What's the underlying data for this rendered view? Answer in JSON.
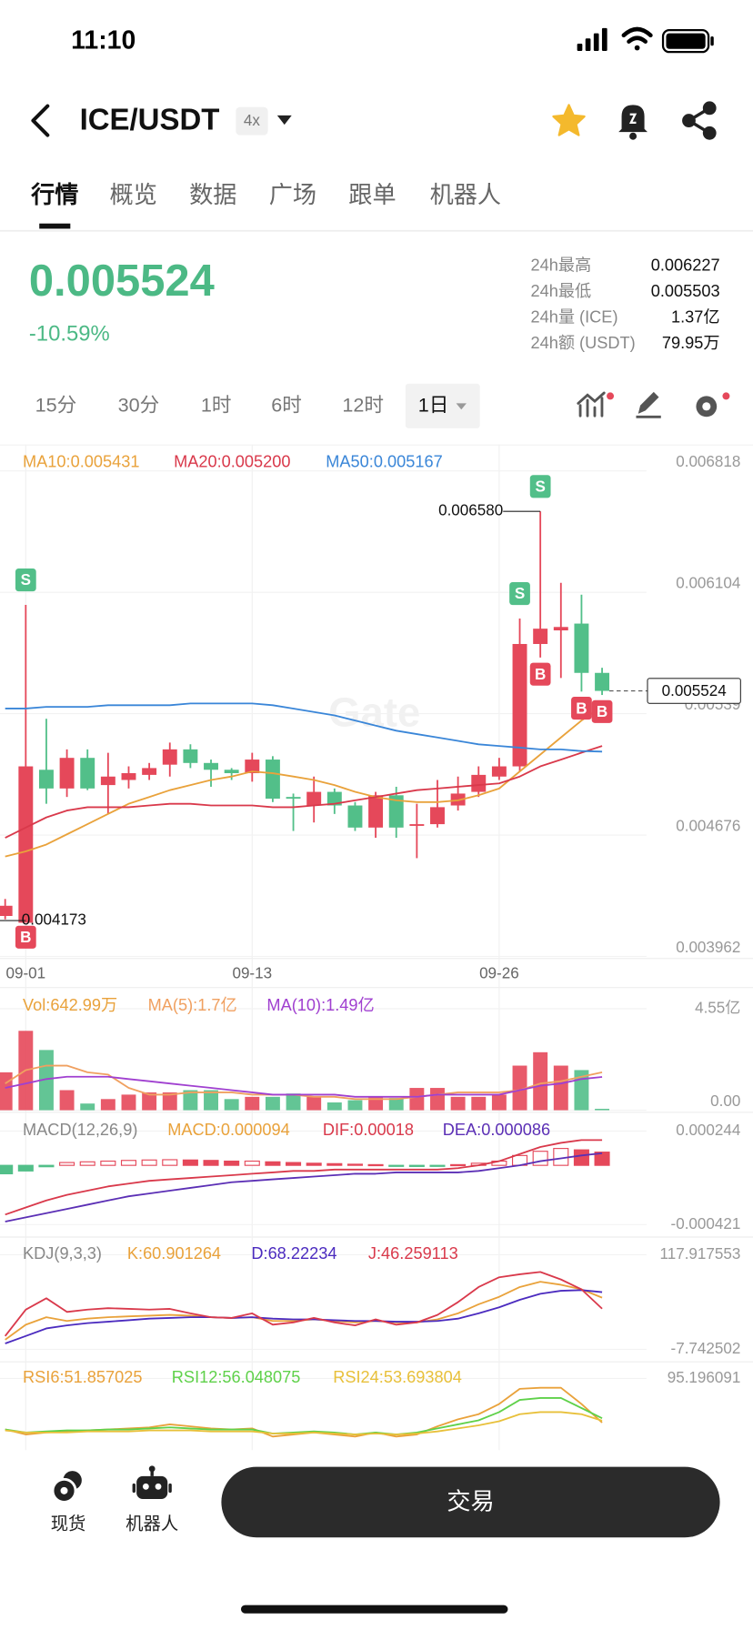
{
  "status_bar": {
    "time": "11:10"
  },
  "header": {
    "pair": "ICE/USDT",
    "leverage": "4x"
  },
  "tabs": [
    "行情",
    "概览",
    "数据",
    "广场",
    "跟单",
    "机器人"
  ],
  "ticker": {
    "price": "0.005524",
    "change": "-10.59%",
    "stats": [
      {
        "label": "24h最高",
        "value": "0.006227"
      },
      {
        "label": "24h最低",
        "value": "0.005503"
      },
      {
        "label": "24h量 (ICE)",
        "value": "1.37亿"
      },
      {
        "label": "24h额 (USDT)",
        "value": "79.95万"
      }
    ]
  },
  "intervals": [
    "15分",
    "30分",
    "1时",
    "6时",
    "12时",
    "1日"
  ],
  "active_interval": "1日",
  "chart_data": [
    {
      "type": "candlestick",
      "watermark": "Gate",
      "up_color": "#e5485a",
      "down_color": "#52bf89",
      "categories": [
        null,
        "09-01",
        null,
        null,
        null,
        null,
        null,
        null,
        null,
        null,
        null,
        null,
        "09-13",
        null,
        null,
        null,
        null,
        null,
        null,
        null,
        null,
        null,
        null,
        null,
        "09-26",
        null,
        null,
        null,
        null,
        null
      ],
      "open": [
        0.0042,
        0.00416,
        0.00506,
        0.00495,
        0.00513,
        0.00497,
        0.005,
        0.00503,
        0.00509,
        0.00518,
        0.0051,
        0.00506,
        0.00504,
        0.00512,
        0.0049,
        0.00485,
        0.00493,
        0.00485,
        0.00472,
        0.00491,
        0.00473,
        0.00474,
        0.00485,
        0.00493,
        0.00502,
        0.00508,
        0.0058,
        0.00588,
        0.00592,
        0.00563
      ],
      "high": [
        0.0043,
        0.00603,
        0.00536,
        0.00518,
        0.00518,
        0.00516,
        0.00508,
        0.0051,
        0.00522,
        0.00521,
        0.00512,
        0.00507,
        0.00516,
        0.00514,
        0.00492,
        0.00502,
        0.00495,
        0.00487,
        0.00493,
        0.00496,
        0.00486,
        0.005,
        0.00502,
        0.00508,
        0.00513,
        0.00595,
        0.00658,
        0.00616,
        0.00609,
        0.00566
      ],
      "low": [
        0.00418,
        0.004173,
        0.00486,
        0.0049,
        0.00494,
        0.0048,
        0.00495,
        0.005,
        0.00502,
        0.00507,
        0.00496,
        0.005,
        0.00499,
        0.00487,
        0.0047,
        0.00475,
        0.0048,
        0.0047,
        0.00466,
        0.00466,
        0.00454,
        0.00472,
        0.00482,
        0.0049,
        0.005,
        0.00505,
        0.00572,
        0.0056,
        0.00552,
        0.0055
      ],
      "close": [
        0.00426,
        0.00508,
        0.00495,
        0.00513,
        0.00495,
        0.00502,
        0.00504,
        0.00507,
        0.00518,
        0.0051,
        0.00506,
        0.00504,
        0.00512,
        0.00489,
        0.00489,
        0.00493,
        0.00485,
        0.00472,
        0.00491,
        0.00472,
        0.00474,
        0.00484,
        0.00492,
        0.00503,
        0.00508,
        0.0058,
        0.00589,
        0.0059,
        0.00563,
        0.005524
      ],
      "series": [
        {
          "name": "MA10:0.005431",
          "color": "#e9a23b",
          "values": [
            0.00455,
            0.00458,
            0.00462,
            0.00468,
            0.00474,
            0.0048,
            0.00486,
            0.0049,
            0.00494,
            0.00497,
            0.005,
            0.00502,
            0.00505,
            0.00504,
            0.00502,
            0.005,
            0.00497,
            0.00493,
            0.0049,
            0.00488,
            0.00487,
            0.00487,
            0.00488,
            0.00491,
            0.00495,
            0.00505,
            0.00515,
            0.00525,
            0.00535,
            0.005431
          ]
        },
        {
          "name": "MA20:0.005200",
          "color": "#d9394b",
          "values": [
            0.00466,
            0.00472,
            0.00478,
            0.00482,
            0.00484,
            0.00484,
            0.00484,
            0.00485,
            0.00486,
            0.00486,
            0.00485,
            0.00485,
            0.00485,
            0.00484,
            0.00484,
            0.00485,
            0.00486,
            0.00488,
            0.0049,
            0.00492,
            0.00494,
            0.00495,
            0.00496,
            0.00497,
            0.00498,
            0.00502,
            0.00508,
            0.00512,
            0.00516,
            0.0052
          ]
        },
        {
          "name": "MA50:0.005167",
          "color": "#3a86d8",
          "values": [
            0.00542,
            0.00542,
            0.00543,
            0.00543,
            0.00543,
            0.00544,
            0.00544,
            0.00544,
            0.00544,
            0.00545,
            0.00545,
            0.00545,
            0.00545,
            0.00544,
            0.00542,
            0.0054,
            0.00538,
            0.00535,
            0.00532,
            0.00529,
            0.00527,
            0.00525,
            0.00523,
            0.00521,
            0.0052,
            0.00519,
            0.00518,
            0.00518,
            0.00517,
            0.005167
          ]
        }
      ],
      "ylim": [
        0.00395,
        0.006971
      ],
      "yticks": [
        0.006818,
        0.006104,
        0.00539,
        0.004676,
        0.003962
      ],
      "markers": [
        {
          "candle": 1,
          "label": "S"
        },
        {
          "candle": 1,
          "label": "B"
        },
        {
          "candle": 25,
          "label": "S"
        },
        {
          "candle": 26,
          "label": "S"
        },
        {
          "candle": 26,
          "label": "B"
        },
        {
          "candle": 28,
          "label": "B"
        },
        {
          "candle": 29,
          "label": "B"
        }
      ],
      "high_label": {
        "candle": 26,
        "label": "0.006580"
      },
      "low_label": {
        "candle": 1,
        "label": "0.004173"
      },
      "last_price_label": "0.005524"
    },
    {
      "type": "bar",
      "title": "Vol:642.99万",
      "title_color": "#e9a23b",
      "values": [
        1.7,
        3.56,
        2.7,
        0.9,
        0.3,
        0.5,
        0.7,
        0.8,
        0.8,
        0.9,
        0.9,
        0.5,
        0.6,
        0.6,
        0.75,
        0.6,
        0.35,
        0.45,
        0.6,
        0.55,
        1.0,
        1.0,
        0.6,
        0.6,
        0.7,
        2.0,
        2.6,
        2.0,
        1.8,
        0.064299
      ],
      "series": [
        {
          "name": "MA(5):1.7亿",
          "color": "#f0a060",
          "values": [
            1.2,
            1.8,
            2.0,
            2.0,
            1.7,
            1.6,
            1.0,
            0.7,
            0.7,
            0.8,
            0.8,
            0.8,
            0.7,
            0.7,
            0.7,
            0.6,
            0.6,
            0.5,
            0.5,
            0.5,
            0.6,
            0.7,
            0.8,
            0.8,
            0.8,
            0.9,
            1.2,
            1.3,
            1.5,
            1.7
          ]
        },
        {
          "name": "MA(10):1.49亿",
          "color": "#a040d0",
          "values": [
            1.0,
            1.2,
            1.4,
            1.5,
            1.5,
            1.5,
            1.4,
            1.3,
            1.2,
            1.1,
            1.0,
            0.9,
            0.8,
            0.7,
            0.7,
            0.7,
            0.7,
            0.6,
            0.6,
            0.6,
            0.6,
            0.7,
            0.7,
            0.7,
            0.7,
            0.9,
            1.1,
            1.2,
            1.4,
            1.49
          ]
        }
      ],
      "ylim": [
        0,
        5.5
      ],
      "yticks": [
        {
          "value": 4.55,
          "label": "4.55亿"
        },
        {
          "value": 0,
          "label": "0.00"
        }
      ]
    },
    {
      "type": "macd",
      "title": "MACD(12,26,9)",
      "histogram": {
        "name": "MACD:0.000094",
        "color": "#e9a23b",
        "values": [
          -6e-05,
          -4e-05,
          -1e-05,
          2e-05,
          2.5e-05,
          3e-05,
          3.5e-05,
          3.8e-05,
          4e-05,
          3.8e-05,
          3.5e-05,
          3e-05,
          3e-05,
          2.5e-05,
          2e-05,
          1.5e-05,
          1.2e-05,
          8e-06,
          5e-06,
          -5e-06,
          -8e-06,
          -5e-06,
          5e-06,
          1.5e-05,
          3e-05,
          7e-05,
          0.0001,
          0.00012,
          0.00011,
          9.4e-05
        ]
      },
      "series": [
        {
          "name": "DIF:0.00018",
          "color": "#d9394b",
          "values": [
            -0.00035,
            -0.0003,
            -0.00025,
            -0.00021,
            -0.00018,
            -0.00015,
            -0.00013,
            -0.00011,
            -0.0001,
            -9e-05,
            -8e-05,
            -7e-05,
            -6e-05,
            -5e-05,
            -4e-05,
            -4e-05,
            -3e-05,
            -3e-05,
            -3e-05,
            -3e-05,
            -3e-05,
            -3e-05,
            -2e-05,
            0.0,
            3e-05,
            8e-05,
            0.00013,
            0.00016,
            0.00018,
            0.00018
          ]
        },
        {
          "name": "DEA:0.000086",
          "color": "#5b2fb5",
          "values": [
            -0.0004,
            -0.00037,
            -0.00034,
            -0.00031,
            -0.00028,
            -0.00025,
            -0.00022,
            -0.0002,
            -0.00018,
            -0.00016,
            -0.00014,
            -0.00012,
            -0.00011,
            -0.0001,
            -9e-05,
            -8e-05,
            -7e-05,
            -6e-05,
            -6e-05,
            -5e-05,
            -5e-05,
            -5e-05,
            -5e-05,
            -4e-05,
            -2e-05,
            0.0,
            3e-05,
            5e-05,
            7e-05,
            8.6e-05
          ]
        }
      ],
      "ylim": [
        -0.000495,
        0.000377
      ],
      "yticks": [
        0.000244,
        -0.000421
      ]
    },
    {
      "type": "line",
      "title": "KDJ(9,3,3)",
      "series": [
        {
          "name": "K:60.901264",
          "color": "#e9a23b",
          "values": [
            5,
            25,
            35,
            30,
            33,
            35,
            36,
            37,
            38,
            37,
            35,
            34,
            35,
            30,
            30,
            32,
            30,
            28,
            30,
            28,
            28,
            32,
            40,
            52,
            62,
            75,
            82,
            78,
            72,
            60.901264
          ]
        },
        {
          "name": "D:68.22234",
          "color": "#4b2bbf",
          "values": [
            0,
            10,
            20,
            24,
            27,
            29,
            31,
            33,
            34,
            35,
            35,
            34,
            35,
            33,
            32,
            32,
            31,
            30,
            30,
            29,
            29,
            30,
            33,
            40,
            48,
            58,
            66,
            70,
            71,
            68.22234
          ]
        },
        {
          "name": "J:46.259113",
          "color": "#d9394b",
          "values": [
            10,
            45,
            60,
            42,
            45,
            47,
            46,
            45,
            46,
            40,
            35,
            34,
            40,
            25,
            28,
            34,
            28,
            24,
            32,
            25,
            28,
            38,
            55,
            75,
            88,
            92,
            95,
            85,
            72,
            46.259113
          ]
        }
      ],
      "ylim": [
        -24.3,
        141.4
      ],
      "yticks": [
        117.917553,
        -7.742502
      ]
    },
    {
      "type": "line",
      "series": [
        {
          "name": "RSI6:51.857025",
          "color": "#e9a23b",
          "values": [
            45,
            40,
            42,
            43,
            44,
            45,
            46,
            47,
            50,
            48,
            46,
            45,
            46,
            38,
            40,
            42,
            40,
            38,
            42,
            38,
            40,
            48,
            55,
            60,
            70,
            85,
            86,
            86,
            70,
            51.857025
          ]
        },
        {
          "name": "RSI12:56.048075",
          "color": "#5fd14a",
          "values": [
            45,
            42,
            43,
            44,
            44,
            45,
            45,
            46,
            47,
            46,
            45,
            45,
            45,
            41,
            42,
            43,
            42,
            40,
            42,
            40,
            42,
            46,
            50,
            54,
            62,
            74,
            76,
            76,
            66,
            56.048075
          ]
        },
        {
          "name": "RSI24:53.693804",
          "color": "#e8c03a",
          "values": [
            44,
            42,
            42,
            42,
            43,
            43,
            43,
            44,
            44,
            44,
            43,
            43,
            43,
            41,
            41,
            42,
            41,
            40,
            41,
            40,
            41,
            43,
            46,
            49,
            53,
            60,
            62,
            62,
            60,
            53.693804
          ]
        }
      ],
      "ylim": [
        24.6,
        109.5
      ],
      "yticks": [
        95.196091
      ]
    }
  ],
  "bottom_nav": {
    "items": [
      "现货",
      "机器人"
    ],
    "trade_button": "交易"
  }
}
